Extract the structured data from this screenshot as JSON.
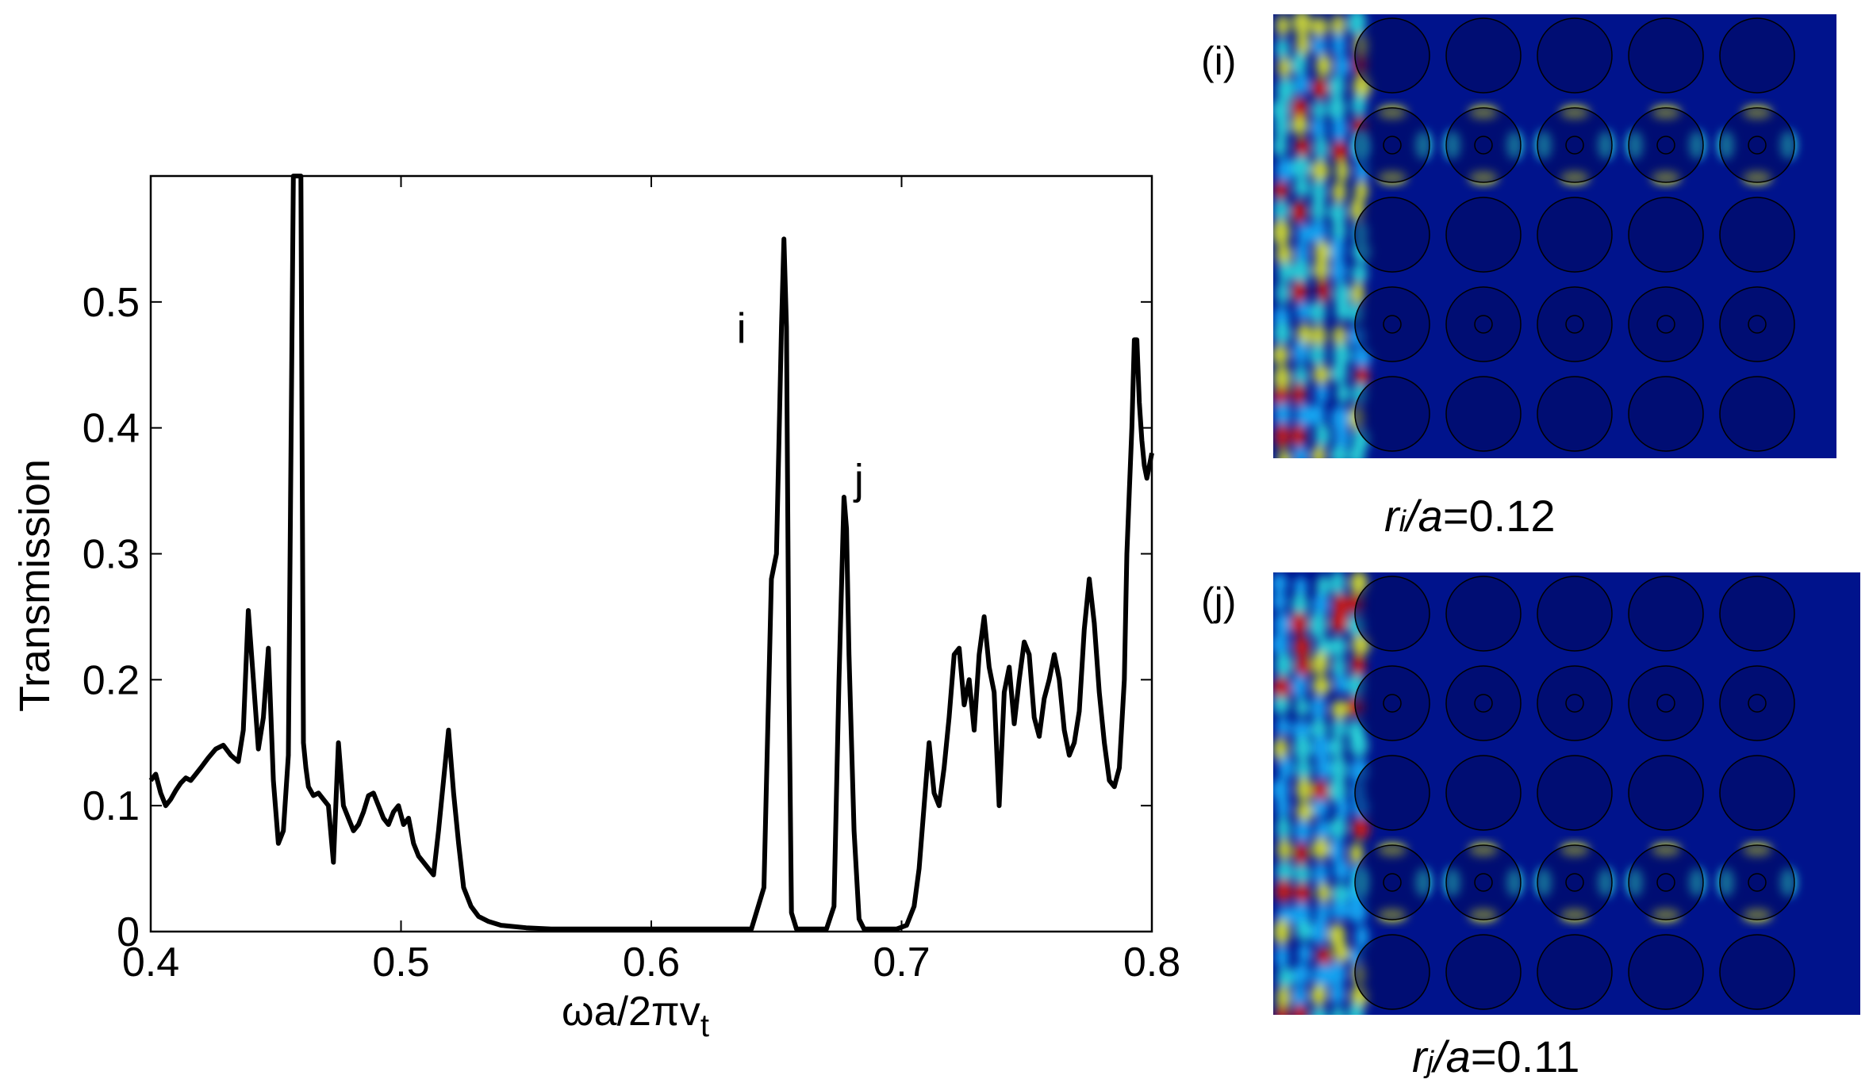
{
  "chart_data": {
    "type": "line",
    "title": "",
    "xlabel": "ωa/2πv",
    "xlabel_sub": "t",
    "ylabel": "Transmission",
    "xlim": [
      0.4,
      0.8
    ],
    "ylim": [
      0,
      0.6
    ],
    "xticks": [
      "0.4",
      "0.5",
      "0.6",
      "0.7",
      "0.8"
    ],
    "yticks": [
      "0",
      "0.1",
      "0.2",
      "0.3",
      "0.4",
      "0.5"
    ],
    "xtick_values": [
      0.4,
      0.5,
      0.6,
      0.7,
      0.8
    ],
    "ytick_values": [
      0,
      0.1,
      0.2,
      0.3,
      0.4,
      0.5
    ],
    "annotations": [
      {
        "text": "i",
        "x": 0.636,
        "y": 0.48
      },
      {
        "text": "j",
        "x": 0.683,
        "y": 0.36
      }
    ],
    "series": [
      {
        "name": "Transmission",
        "color": "#000000",
        "x": [
          0.4,
          0.402,
          0.404,
          0.406,
          0.408,
          0.41,
          0.412,
          0.414,
          0.416,
          0.418,
          0.42,
          0.423,
          0.426,
          0.429,
          0.432,
          0.435,
          0.437,
          0.439,
          0.441,
          0.443,
          0.445,
          0.447,
          0.449,
          0.451,
          0.453,
          0.455,
          0.457,
          0.458,
          0.459,
          0.46,
          0.461,
          0.462,
          0.463,
          0.465,
          0.467,
          0.469,
          0.471,
          0.473,
          0.475,
          0.477,
          0.479,
          0.481,
          0.483,
          0.485,
          0.487,
          0.489,
          0.491,
          0.493,
          0.495,
          0.497,
          0.499,
          0.501,
          0.503,
          0.505,
          0.507,
          0.509,
          0.511,
          0.513,
          0.515,
          0.517,
          0.519,
          0.521,
          0.523,
          0.525,
          0.528,
          0.531,
          0.535,
          0.54,
          0.55,
          0.56,
          0.58,
          0.6,
          0.62,
          0.64,
          0.645,
          0.648,
          0.65,
          0.652,
          0.653,
          0.654,
          0.655,
          0.656,
          0.658,
          0.66,
          0.665,
          0.67,
          0.673,
          0.675,
          0.677,
          0.678,
          0.679,
          0.681,
          0.683,
          0.685,
          0.688,
          0.692,
          0.698,
          0.702,
          0.705,
          0.707,
          0.709,
          0.711,
          0.713,
          0.715,
          0.717,
          0.719,
          0.721,
          0.723,
          0.725,
          0.727,
          0.729,
          0.731,
          0.733,
          0.735,
          0.737,
          0.739,
          0.741,
          0.743,
          0.745,
          0.747,
          0.749,
          0.751,
          0.753,
          0.755,
          0.757,
          0.759,
          0.761,
          0.763,
          0.765,
          0.767,
          0.769,
          0.771,
          0.773,
          0.775,
          0.777,
          0.779,
          0.781,
          0.783,
          0.785,
          0.787,
          0.789,
          0.79,
          0.791,
          0.792,
          0.793,
          0.794,
          0.795,
          0.796,
          0.797,
          0.798,
          0.8
        ],
        "y": [
          0.12,
          0.125,
          0.11,
          0.1,
          0.105,
          0.112,
          0.118,
          0.122,
          0.12,
          0.125,
          0.13,
          0.138,
          0.145,
          0.148,
          0.14,
          0.135,
          0.16,
          0.255,
          0.2,
          0.145,
          0.17,
          0.225,
          0.12,
          0.07,
          0.08,
          0.14,
          0.6,
          0.6,
          0.6,
          0.6,
          0.15,
          0.13,
          0.115,
          0.108,
          0.11,
          0.105,
          0.1,
          0.055,
          0.15,
          0.1,
          0.09,
          0.08,
          0.085,
          0.095,
          0.108,
          0.11,
          0.1,
          0.09,
          0.085,
          0.095,
          0.1,
          0.085,
          0.09,
          0.07,
          0.06,
          0.055,
          0.05,
          0.045,
          0.08,
          0.12,
          0.16,
          0.11,
          0.07,
          0.035,
          0.02,
          0.012,
          0.008,
          0.005,
          0.003,
          0.002,
          0.002,
          0.002,
          0.002,
          0.002,
          0.035,
          0.28,
          0.3,
          0.48,
          0.55,
          0.48,
          0.2,
          0.015,
          0.002,
          0.002,
          0.002,
          0.002,
          0.02,
          0.2,
          0.345,
          0.32,
          0.22,
          0.08,
          0.01,
          0.002,
          0.002,
          0.002,
          0.002,
          0.005,
          0.02,
          0.05,
          0.1,
          0.15,
          0.11,
          0.1,
          0.13,
          0.17,
          0.22,
          0.225,
          0.18,
          0.2,
          0.16,
          0.22,
          0.25,
          0.21,
          0.19,
          0.1,
          0.19,
          0.21,
          0.165,
          0.2,
          0.23,
          0.22,
          0.17,
          0.155,
          0.185,
          0.2,
          0.22,
          0.2,
          0.16,
          0.14,
          0.15,
          0.175,
          0.24,
          0.28,
          0.245,
          0.19,
          0.15,
          0.12,
          0.115,
          0.13,
          0.2,
          0.3,
          0.35,
          0.4,
          0.47,
          0.47,
          0.42,
          0.39,
          0.37,
          0.36,
          0.38
        ]
      }
    ]
  },
  "insets": [
    {
      "label": "(i)",
      "caption_var": "r",
      "caption_sub": "i",
      "caption_mid": "/",
      "caption_a": "a",
      "caption_val": "=0.12",
      "defect_rows": [
        1,
        3
      ],
      "bright_row": 1
    },
    {
      "label": "(j)",
      "caption_var": "r",
      "caption_sub": "j",
      "caption_mid": "/",
      "caption_a": "a",
      "caption_val": "=0.11",
      "defect_rows": [
        1,
        3
      ],
      "bright_row": 3
    }
  ],
  "colors": {
    "field_background": "#00138c",
    "field_dark": "#000a5e",
    "field_light": "#1ab8ff",
    "field_cyan": "#2ee8e0",
    "field_yellow": "#e6f02a",
    "field_red": "#e02010",
    "line": "#000000"
  }
}
